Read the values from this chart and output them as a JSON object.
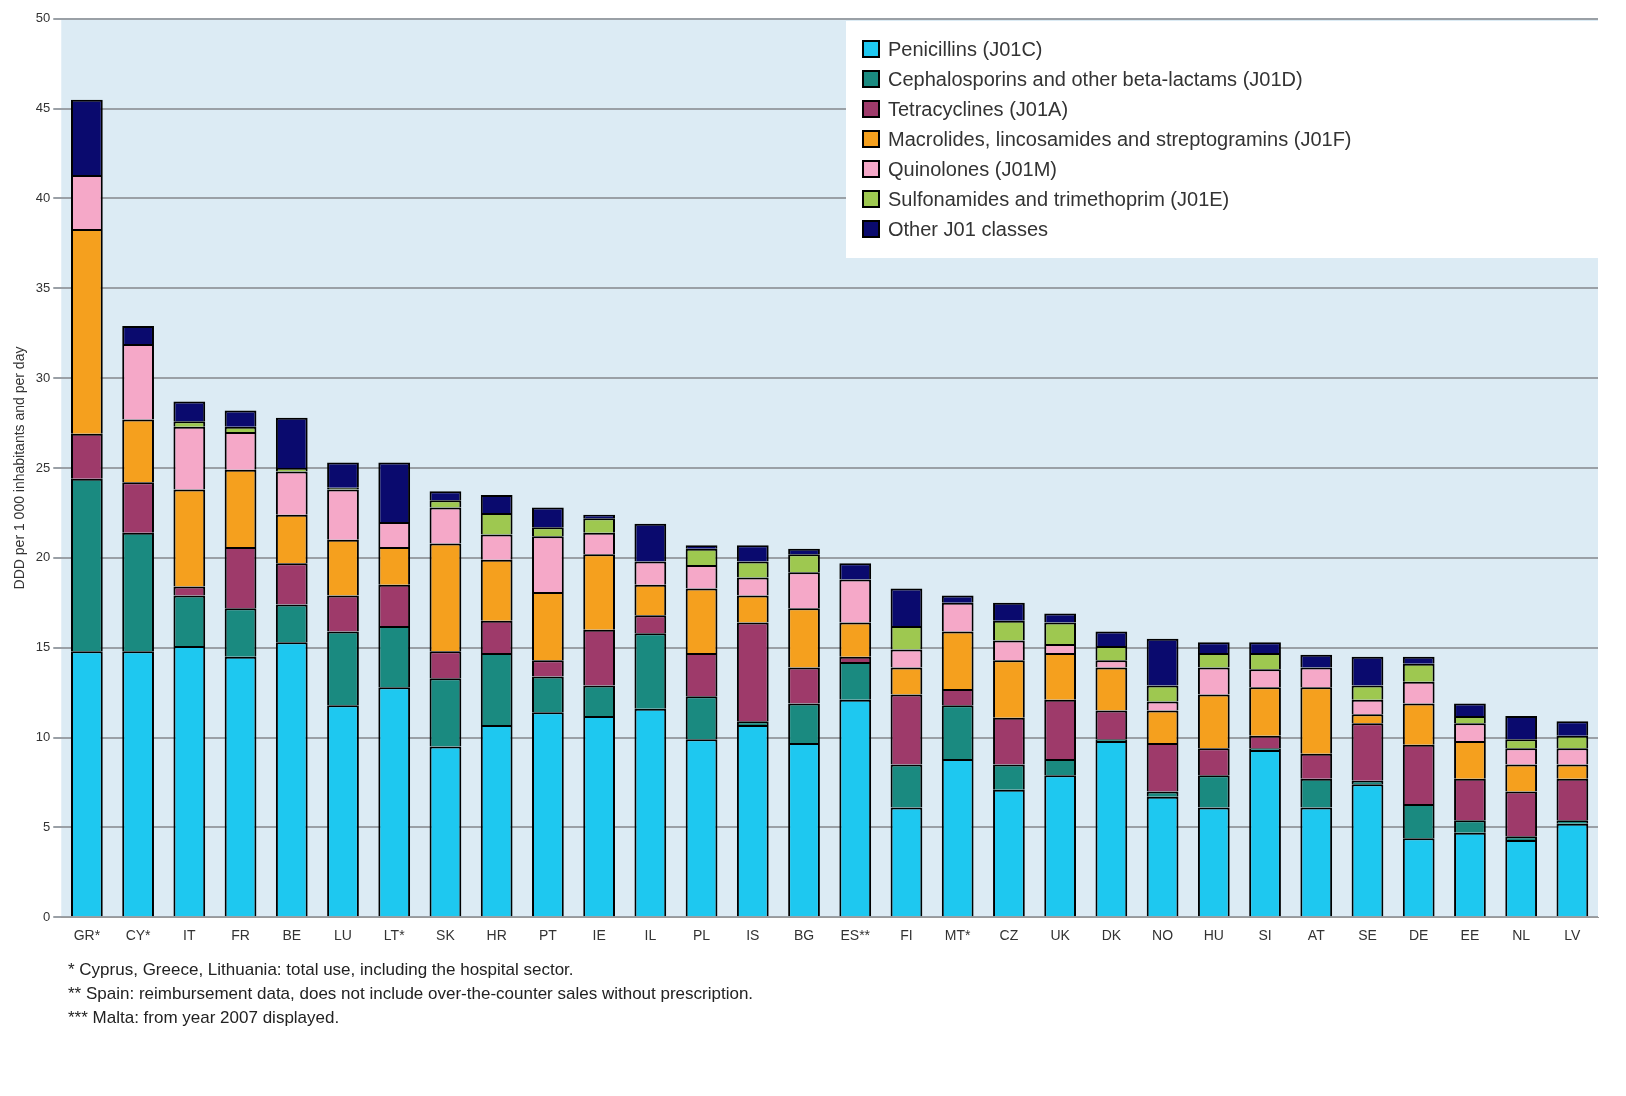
{
  "chart_data": {
    "type": "bar",
    "stacked": true,
    "ylabel": "DDD per 1 000 inhabitants and per day",
    "categories": [
      "GR*",
      "CY*",
      "IT",
      "FR",
      "BE",
      "LU",
      "LT*",
      "SK",
      "HR",
      "PT",
      "IE",
      "IL",
      "PL",
      "IS",
      "BG",
      "ES**",
      "FI",
      "MT*",
      "CZ",
      "UK",
      "DK",
      "NO",
      "HU",
      "SI",
      "AT",
      "SE",
      "DE",
      "EE",
      "NL",
      "LV"
    ],
    "series": [
      {
        "name": "Penicillins (J01C)",
        "color": "#1ec8f0",
        "values": [
          14.8,
          14.8,
          15.1,
          14.5,
          15.3,
          11.8,
          12.8,
          9.5,
          10.7,
          11.4,
          11.2,
          11.6,
          9.9,
          10.7,
          9.7,
          12.1,
          6.1,
          8.8,
          7.1,
          7.9,
          9.8,
          6.7,
          6.1,
          9.3,
          6.1,
          7.4,
          4.4,
          4.7,
          4.3,
          5.2
        ]
      },
      {
        "name": "Cephalosporins and other beta-lactams (J01D)",
        "color": "#1a8a80",
        "values": [
          9.6,
          6.6,
          2.8,
          2.7,
          2.1,
          4.1,
          3.4,
          3.8,
          4.0,
          2.0,
          1.7,
          4.2,
          2.4,
          0.2,
          2.2,
          2.1,
          2.4,
          3.0,
          1.4,
          0.9,
          0.1,
          0.3,
          1.8,
          0.1,
          1.6,
          0.2,
          1.9,
          0.7,
          0.2,
          0.2
        ]
      },
      {
        "name": "Tetracyclines (J01A)",
        "color": "#9e3a6a",
        "values": [
          2.5,
          2.8,
          0.5,
          3.4,
          2.3,
          2.0,
          2.3,
          1.5,
          1.8,
          0.9,
          3.1,
          1.0,
          2.4,
          5.5,
          2.0,
          0.3,
          3.9,
          0.9,
          2.6,
          3.3,
          1.6,
          2.7,
          1.5,
          0.7,
          1.4,
          3.2,
          3.3,
          2.3,
          2.5,
          2.3
        ]
      },
      {
        "name": "Macrolides, lincosamides and streptogramins (J01F)",
        "color": "#f5a01e",
        "values": [
          11.4,
          3.5,
          5.4,
          4.3,
          2.7,
          3.1,
          2.1,
          6.0,
          3.4,
          3.8,
          4.2,
          1.7,
          3.6,
          1.5,
          3.3,
          1.9,
          1.5,
          3.2,
          3.2,
          2.6,
          2.4,
          1.8,
          3.0,
          2.7,
          3.7,
          0.5,
          2.3,
          2.1,
          1.5,
          0.8
        ]
      },
      {
        "name": "Quinolones (J01M)",
        "color": "#f5a8c8",
        "values": [
          3.0,
          4.2,
          3.5,
          2.1,
          2.4,
          2.8,
          1.4,
          2.0,
          1.4,
          3.1,
          1.2,
          1.3,
          1.3,
          1.0,
          2.0,
          2.4,
          1.0,
          1.6,
          1.1,
          0.5,
          0.4,
          0.5,
          1.5,
          1.0,
          1.1,
          0.8,
          1.2,
          1.0,
          0.9,
          0.9
        ]
      },
      {
        "name": "Sulfonamides and trimethoprim (J01E)",
        "color": "#9ec850",
        "values": [
          0,
          0,
          0.3,
          0.3,
          0.2,
          0.1,
          0,
          0.4,
          1.2,
          0.5,
          0.8,
          0,
          0.9,
          0.9,
          1.0,
          0,
          1.3,
          0,
          1.1,
          1.2,
          0.8,
          0.9,
          0.8,
          0.9,
          0,
          0.8,
          1.0,
          0.4,
          0.5,
          0.7
        ]
      },
      {
        "name": "Other J01 classes",
        "color": "#0a0a6e",
        "values": [
          4.2,
          1.0,
          1.1,
          0.9,
          2.8,
          1.4,
          3.3,
          0.5,
          1.0,
          1.1,
          0.2,
          2.1,
          0.2,
          0.9,
          0.3,
          0.9,
          2.1,
          0.4,
          1.0,
          0.5,
          0.8,
          2.6,
          0.6,
          0.6,
          0.7,
          1.6,
          0.4,
          0.7,
          1.3,
          0.8
        ]
      }
    ],
    "ylim": [
      0,
      50
    ],
    "yticks": [
      0,
      5,
      10,
      15,
      20,
      25,
      30,
      35,
      40,
      45,
      50
    ],
    "grid": "y",
    "legend": "top right",
    "annotations": [
      "* Cyprus, Greece, Lithuania: total use, including the hospital sector.",
      "** Spain: reimbursement data, does not include over-the-counter sales without prescription.",
      "*** Malta: from year 2007 displayed."
    ]
  }
}
